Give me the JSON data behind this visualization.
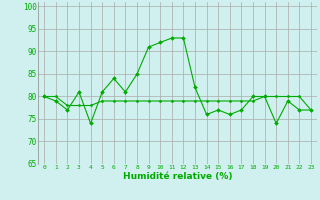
{
  "title": "",
  "xlabel": "Humidité relative (%)",
  "ylabel": "",
  "background_color": "#cff0ee",
  "grid_color": "#aaaaaa",
  "line_color": "#00aa00",
  "marker_color": "#00aa00",
  "xlim": [
    -0.5,
    23.5
  ],
  "ylim": [
    65,
    101
  ],
  "yticks": [
    65,
    70,
    75,
    80,
    85,
    90,
    95,
    100
  ],
  "xticks": [
    0,
    1,
    2,
    3,
    4,
    5,
    6,
    7,
    8,
    9,
    10,
    11,
    12,
    13,
    14,
    15,
    16,
    17,
    18,
    19,
    20,
    21,
    22,
    23
  ],
  "series1": [
    80,
    79,
    77,
    81,
    74,
    81,
    84,
    81,
    85,
    91,
    92,
    93,
    93,
    82,
    76,
    77,
    76,
    77,
    80,
    80,
    74,
    79,
    77,
    77
  ],
  "series2": [
    80,
    80,
    78,
    78,
    78,
    79,
    79,
    79,
    79,
    79,
    79,
    79,
    79,
    79,
    79,
    79,
    79,
    79,
    79,
    80,
    80,
    80,
    80,
    77
  ]
}
